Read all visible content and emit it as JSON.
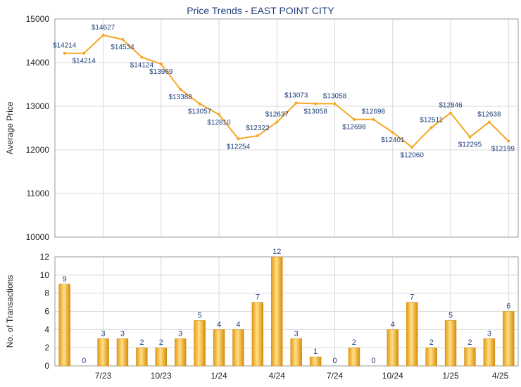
{
  "chart_data": [
    {
      "type": "line",
      "title": "Price Trends - EAST POINT CITY",
      "ylabel": "Average Price",
      "ylim": [
        10000,
        15000
      ],
      "yticks": [
        10000,
        11000,
        12000,
        13000,
        14000,
        15000
      ],
      "x_tick_labels": [
        "7/23",
        "10/23",
        "1/24",
        "4/24",
        "7/24",
        "10/24",
        "1/25",
        "4/25"
      ],
      "x_tick_indices": [
        2,
        5,
        8,
        11,
        14,
        17,
        20,
        23
      ],
      "series": [
        {
          "color": "#f5a623",
          "values": [
            14214,
            14214,
            14627,
            14534,
            14124,
            13969,
            13388,
            13057,
            12810,
            12254,
            12322,
            12637,
            13073,
            13058,
            13058,
            12698,
            12698,
            12401,
            12060,
            12511,
            12846,
            12295,
            12638,
            12199
          ],
          "labels": [
            "$14214",
            "$14214",
            "$14627",
            "$14534",
            "$14124",
            "$13969",
            "$13388",
            "$13057",
            "$12810",
            "$12254",
            "$12322",
            "$12637",
            "$13073",
            "$13058",
            "$13058",
            "$12698",
            "$12698",
            "$12401",
            "$12060",
            "$12511",
            "$12846",
            "$12295",
            "$12638",
            "$12199"
          ]
        }
      ],
      "grid": true
    },
    {
      "type": "bar",
      "ylabel": "No. of Transactions",
      "ylim": [
        0,
        12
      ],
      "yticks": [
        0,
        2,
        4,
        6,
        8,
        10,
        12
      ],
      "x_tick_labels": [
        "7/23",
        "10/23",
        "1/24",
        "4/24",
        "7/24",
        "10/24",
        "1/25",
        "4/25"
      ],
      "x_tick_indices": [
        2,
        5,
        8,
        11,
        14,
        17,
        20,
        23
      ],
      "values": [
        9,
        0,
        3,
        3,
        2,
        2,
        3,
        5,
        4,
        4,
        7,
        12,
        3,
        1,
        0,
        2,
        0,
        4,
        7,
        2,
        5,
        2,
        3,
        6
      ],
      "color": "#f0b42a",
      "grid": true
    }
  ]
}
